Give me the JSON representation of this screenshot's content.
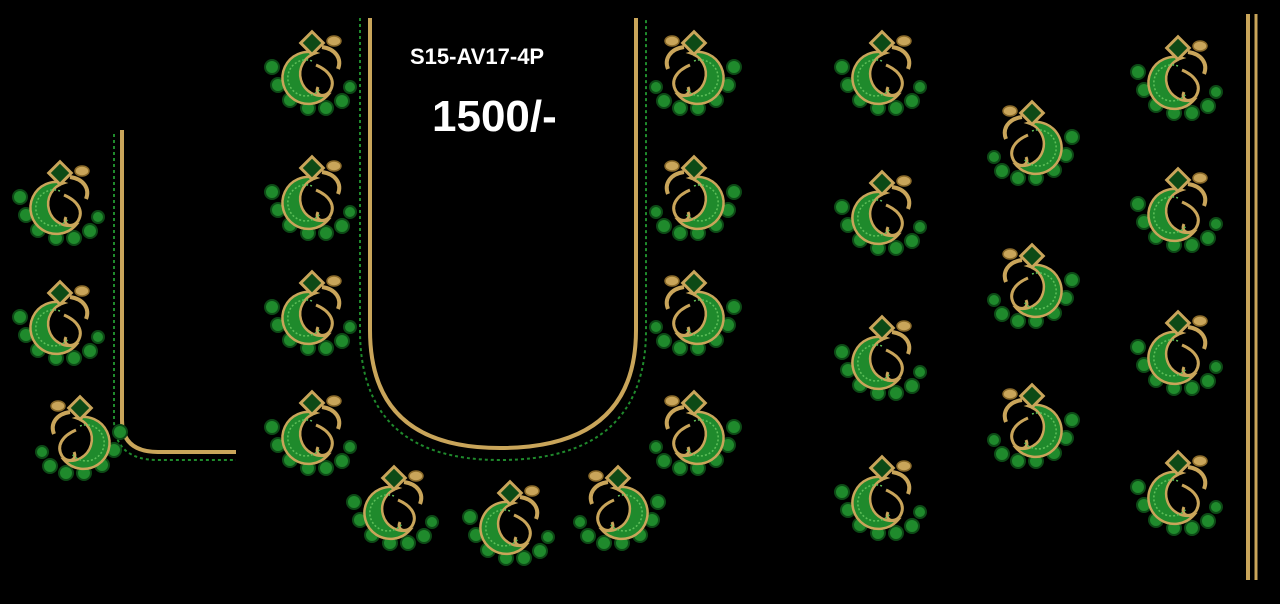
{
  "design_code": "S15-AV17-4P",
  "price": "1500/-",
  "colors": {
    "background": "#000000",
    "gold": "#c9a55a",
    "gold_dark": "#8a6a2a",
    "green": "#1f8a2c",
    "green_dark": "#0d4a16",
    "text": "#ffffff"
  },
  "motif_icon": "chandbali-earring-motif"
}
